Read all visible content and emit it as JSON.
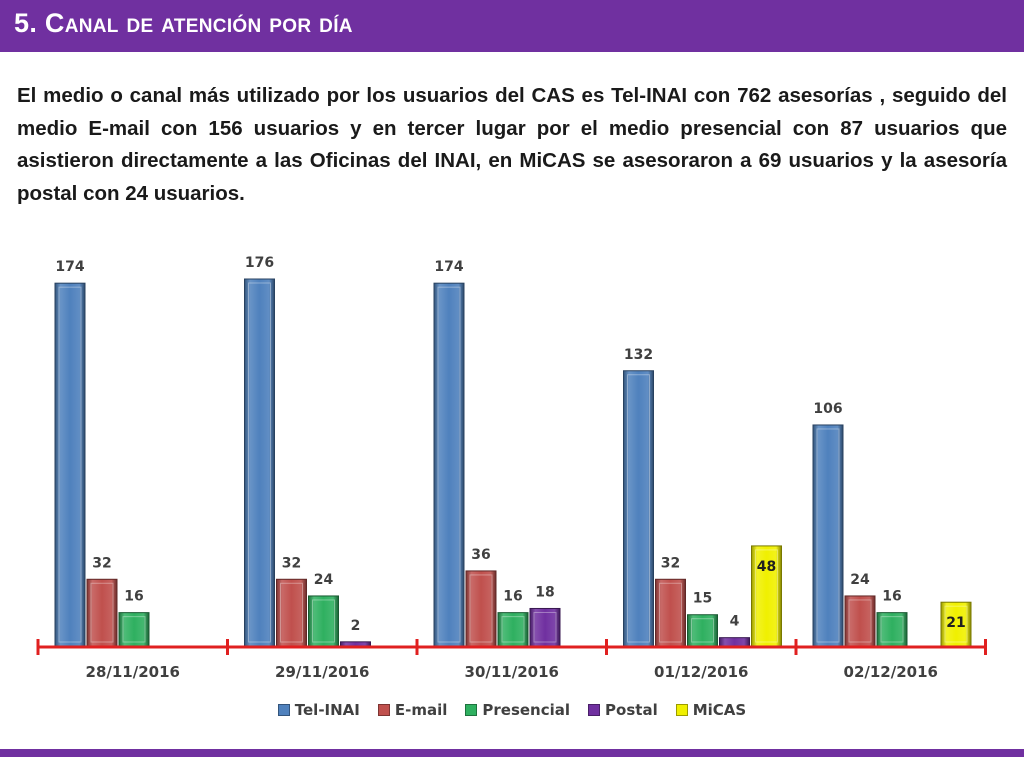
{
  "slide": {
    "title": "5. Canal de atención por día",
    "intro": "El medio o canal más utilizado por los usuarios del CAS es Tel-INAI con 762 asesorías , seguido del medio E-mail con 156 usuarios y en tercer lugar por el medio presencial con 87 usuarios que  asistieron directamente a las Oficinas del INAI, en MiCAS se asesoraron a 69 usuarios y la asesoría postal con 24 usuarios."
  },
  "colors": {
    "accent": "#7030a0",
    "axis": "#e02020"
  },
  "chart_data": {
    "type": "bar",
    "categories": [
      "28/11/2016",
      "29/11/2016",
      "30/11/2016",
      "01/12/2016",
      "02/12/2016"
    ],
    "series": [
      {
        "name": "Tel-INAI",
        "color": "#4f81bd",
        "values": [
          174,
          176,
          174,
          132,
          106
        ]
      },
      {
        "name": "E-mail",
        "color": "#c0504d",
        "values": [
          32,
          32,
          36,
          32,
          24
        ]
      },
      {
        "name": "Presencial",
        "color": "#2fb060",
        "values": [
          16,
          24,
          16,
          15,
          16
        ]
      },
      {
        "name": "Postal",
        "color": "#7030a0",
        "values": [
          null,
          2,
          18,
          4,
          null
        ]
      },
      {
        "name": "MiCAS",
        "color": "#f0f000",
        "values": [
          null,
          null,
          null,
          48,
          21
        ]
      }
    ],
    "ylim": [
      0,
      176
    ],
    "grid": false,
    "legend": "bottom"
  }
}
